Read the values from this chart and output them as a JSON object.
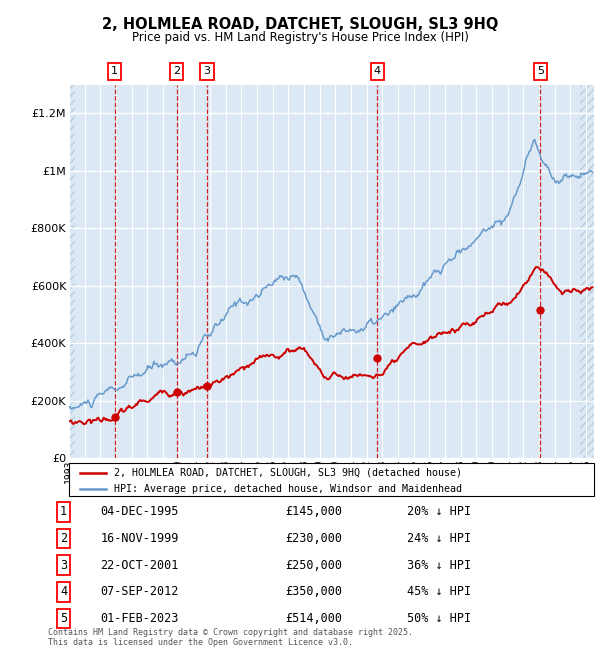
{
  "title": "2, HOLMLEA ROAD, DATCHET, SLOUGH, SL3 9HQ",
  "subtitle": "Price paid vs. HM Land Registry's House Price Index (HPI)",
  "ylabel_ticks": [
    "£0",
    "£200K",
    "£400K",
    "£600K",
    "£800K",
    "£1M",
    "£1.2M"
  ],
  "ytick_vals": [
    0,
    200000,
    400000,
    600000,
    800000,
    1000000,
    1200000
  ],
  "ylim": [
    0,
    1300000
  ],
  "xlim_start": 1993.0,
  "xlim_end": 2026.5,
  "sale_dates": [
    1995.92,
    1999.88,
    2001.81,
    2012.68,
    2023.08
  ],
  "sale_prices": [
    145000,
    230000,
    250000,
    350000,
    514000
  ],
  "sale_labels": [
    "1",
    "2",
    "3",
    "4",
    "5"
  ],
  "table_entries": [
    {
      "num": "1",
      "date": "04-DEC-1995",
      "price": "£145,000",
      "pct": "20% ↓ HPI"
    },
    {
      "num": "2",
      "date": "16-NOV-1999",
      "price": "£230,000",
      "pct": "24% ↓ HPI"
    },
    {
      "num": "3",
      "date": "22-OCT-2001",
      "price": "£250,000",
      "pct": "36% ↓ HPI"
    },
    {
      "num": "4",
      "date": "07-SEP-2012",
      "price": "£350,000",
      "pct": "45% ↓ HPI"
    },
    {
      "num": "5",
      "date": "01-FEB-2023",
      "price": "£514,000",
      "pct": "50% ↓ HPI"
    }
  ],
  "footer": "Contains HM Land Registry data © Crown copyright and database right 2025.\nThis data is licensed under the Open Government Licence v3.0.",
  "legend_house": "2, HOLMLEA ROAD, DATCHET, SLOUGH, SL3 9HQ (detached house)",
  "legend_hpi": "HPI: Average price, detached house, Windsor and Maidenhead",
  "bg_color": "#dce9f5",
  "hatch_color": "#b8cfe0",
  "line_red": "#cc0000",
  "line_blue": "#6699cc",
  "dot_color": "#cc0000",
  "vline_color": "#cc0000",
  "grid_color": "#ffffff",
  "sale_marker_size": 6,
  "hatch_left_end": 1993.4,
  "hatch_right_start": 2025.6
}
